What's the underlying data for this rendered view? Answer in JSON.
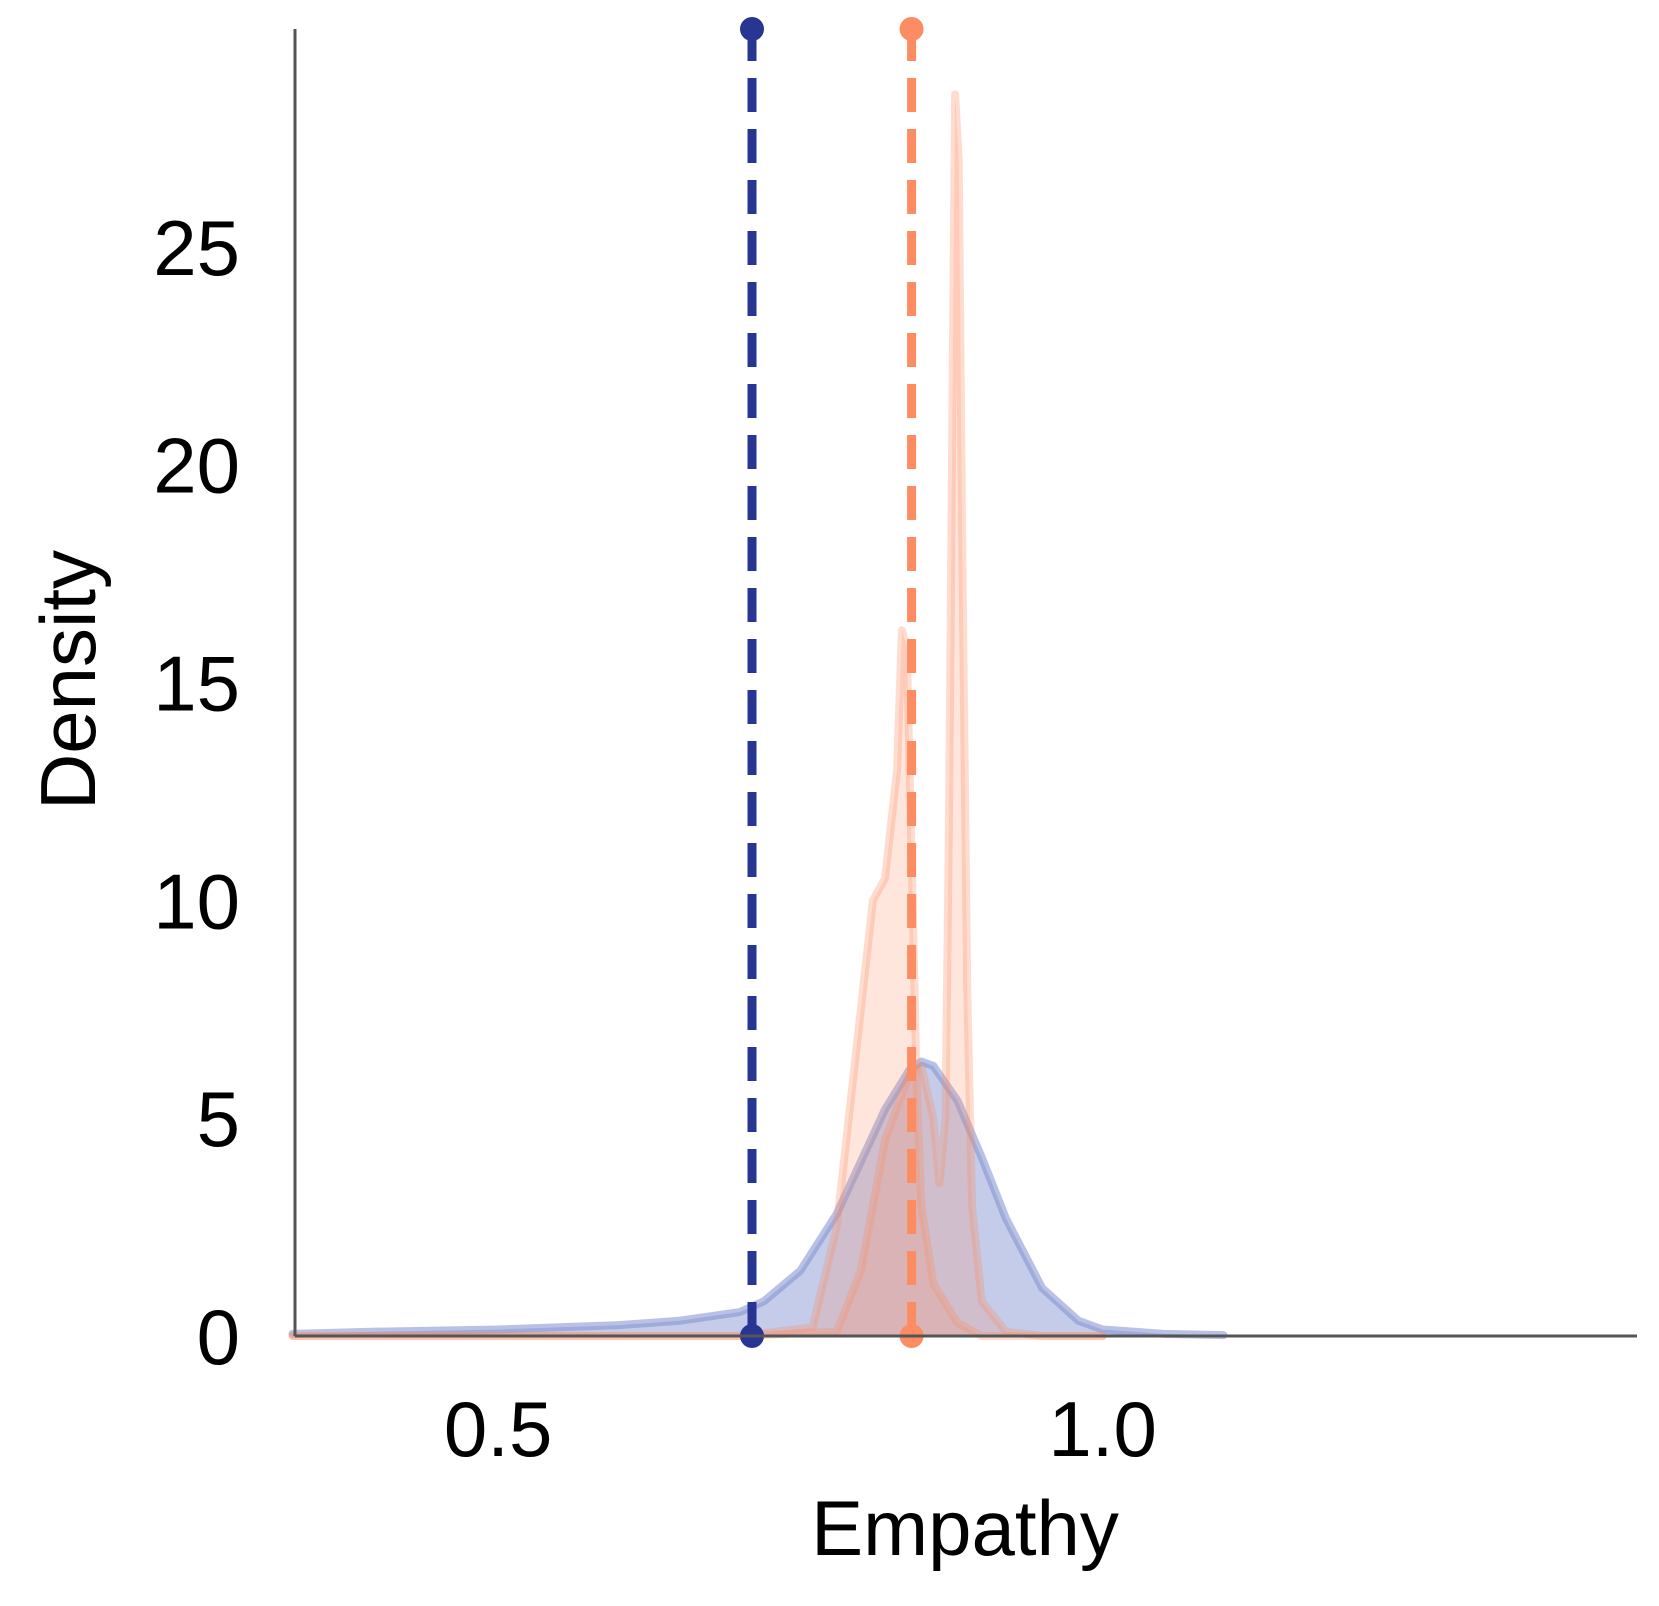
{
  "chart_data": {
    "type": "kde",
    "x_label": "Empathy",
    "y_label": "Density",
    "xlim": [
      0.332,
      1.442
    ],
    "ylim": [
      0,
      30
    ],
    "xticks": [
      0.5,
      {
        "value": 1,
        "label": "1.0"
      }
    ],
    "yticks": [
      0,
      5,
      10,
      15,
      20,
      25
    ],
    "series": [
      {
        "color": "#7f8fcf",
        "x": [
          0.33,
          0.4,
          0.5,
          0.6,
          0.65,
          0.7,
          0.72,
          0.75,
          0.78,
          0.8,
          0.82,
          0.84,
          0.85,
          0.86,
          0.88,
          0.9,
          0.92,
          0.95,
          0.98,
          1.0,
          1.05,
          1.1
        ],
        "values": [
          0.05,
          0.1,
          0.15,
          0.25,
          0.35,
          0.55,
          0.8,
          1.5,
          2.8,
          4.0,
          5.2,
          6.1,
          6.3,
          6.2,
          5.4,
          4.1,
          2.7,
          1.1,
          0.35,
          0.15,
          0.05,
          0.02
        ]
      },
      {
        "color": "#fc8d62",
        "x": [
          0.33,
          0.7,
          0.78,
          0.8,
          0.82,
          0.84,
          0.85,
          0.86,
          0.865,
          0.87,
          0.873,
          0.876,
          0.878,
          0.881,
          0.884,
          0.888,
          0.892,
          0.9,
          0.92,
          0.95,
          1.0
        ],
        "values": [
          0,
          0,
          0.1,
          1.5,
          4.5,
          6.0,
          6.2,
          5.0,
          3.5,
          5,
          12,
          22,
          28.5,
          27,
          17.8,
          8,
          3,
          0.8,
          0.1,
          0,
          0
        ]
      },
      {
        "color": "#fc8d62",
        "x": [
          0.33,
          0.7,
          0.76,
          0.78,
          0.8,
          0.81,
          0.82,
          0.83,
          0.834,
          0.838,
          0.842,
          0.846,
          0.85,
          0.86,
          0.88,
          0.9,
          1.0
        ],
        "values": [
          0,
          0,
          0.2,
          2.5,
          7.5,
          10,
          10.5,
          13,
          16.2,
          15.8,
          11,
          6,
          3,
          1.2,
          0.3,
          0,
          0
        ]
      }
    ],
    "vlines": [
      {
        "value": 0.71,
        "color": "#283593"
      },
      {
        "value": 0.842,
        "color": "#fc8d62"
      }
    ]
  }
}
